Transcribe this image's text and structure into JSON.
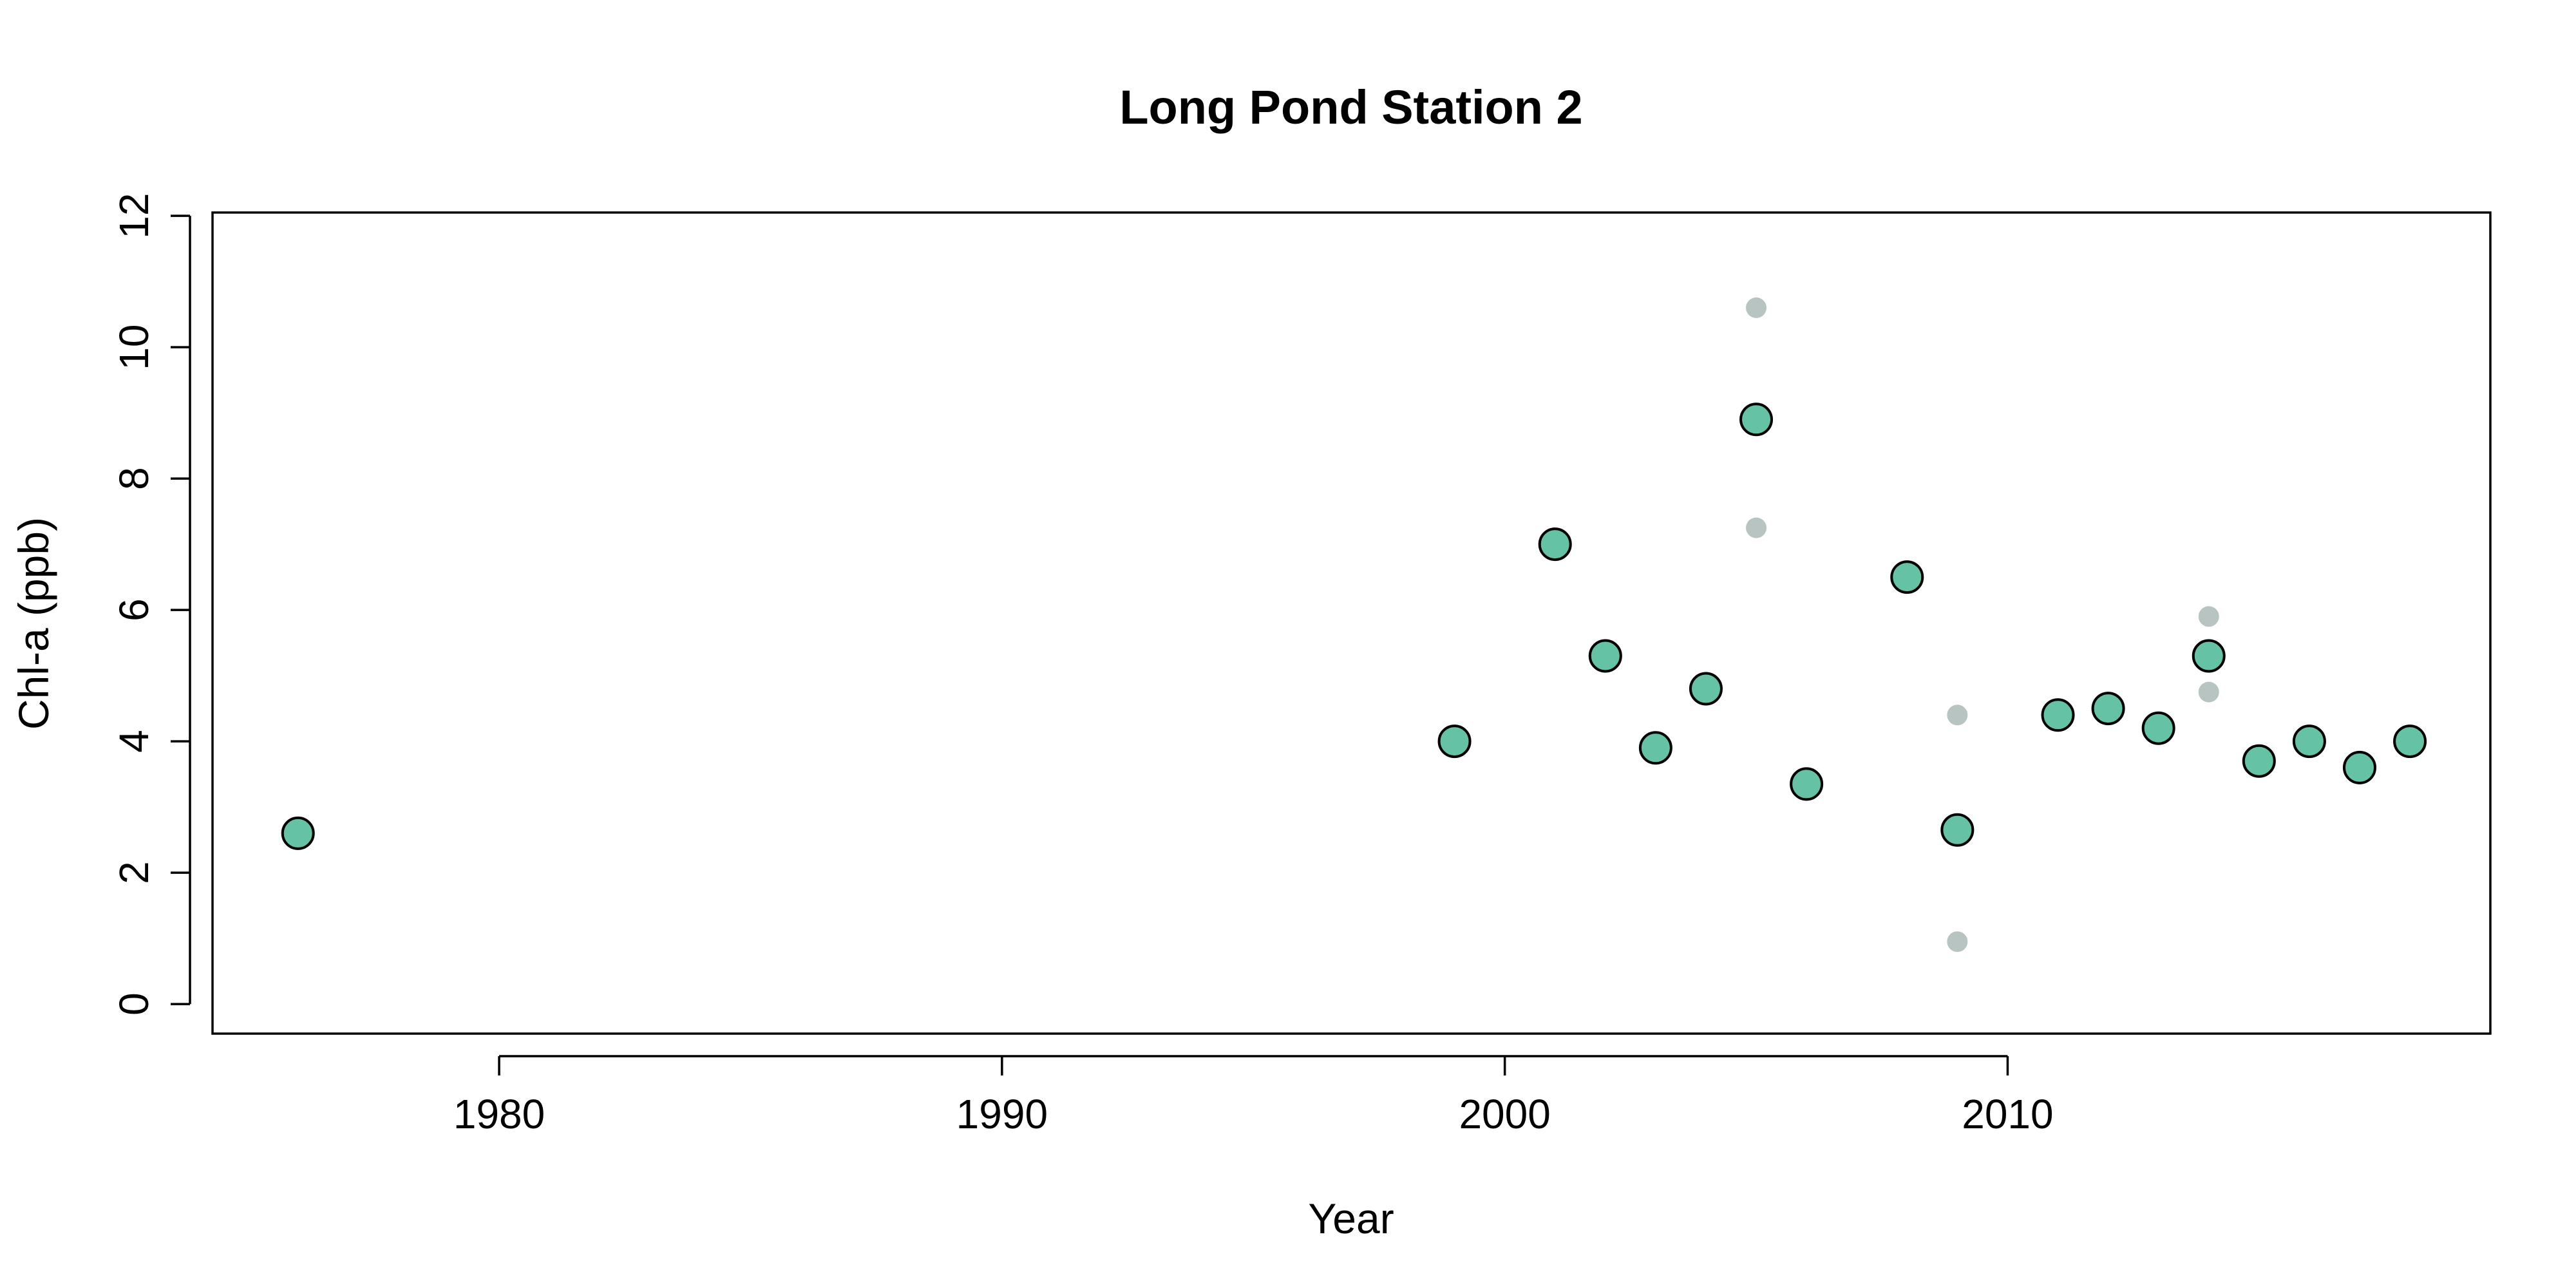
{
  "chart_data": {
    "type": "scatter",
    "title": "Long Pond Station 2",
    "xlabel": "Year",
    "ylabel": "Chl-a (ppb)",
    "xlim": [
      1974.3,
      2019.6
    ],
    "ylim": [
      -0.45,
      12.05
    ],
    "xticks": [
      1980,
      1990,
      2000,
      2010
    ],
    "yticks": [
      0,
      2,
      4,
      6,
      8,
      10,
      12
    ],
    "grid": false,
    "colors": {
      "mean_fill": "#66c2a5",
      "mean_stroke": "#000000",
      "sample_fill": "#b8c4c2"
    },
    "series": [
      {
        "marker": "circle-outlined",
        "points": [
          {
            "x": 1976,
            "y": 2.6
          },
          {
            "x": 1999,
            "y": 4.0
          },
          {
            "x": 2001,
            "y": 7.0
          },
          {
            "x": 2002,
            "y": 5.3
          },
          {
            "x": 2003,
            "y": 3.9
          },
          {
            "x": 2004,
            "y": 4.8
          },
          {
            "x": 2005,
            "y": 8.9
          },
          {
            "x": 2006,
            "y": 3.35
          },
          {
            "x": 2008,
            "y": 6.5
          },
          {
            "x": 2009,
            "y": 2.65
          },
          {
            "x": 2011,
            "y": 4.4
          },
          {
            "x": 2012,
            "y": 4.5
          },
          {
            "x": 2013,
            "y": 4.2
          },
          {
            "x": 2014,
            "y": 5.3
          },
          {
            "x": 2015,
            "y": 3.7
          },
          {
            "x": 2016,
            "y": 4.0
          },
          {
            "x": 2017,
            "y": 3.6
          },
          {
            "x": 2018,
            "y": 4.0
          }
        ]
      },
      {
        "marker": "dot",
        "points": [
          {
            "x": 2005,
            "y": 10.6
          },
          {
            "x": 2005,
            "y": 7.25
          },
          {
            "x": 2009,
            "y": 4.4
          },
          {
            "x": 2009,
            "y": 0.95
          },
          {
            "x": 2014,
            "y": 5.9
          },
          {
            "x": 2014,
            "y": 4.75
          }
        ]
      }
    ]
  }
}
